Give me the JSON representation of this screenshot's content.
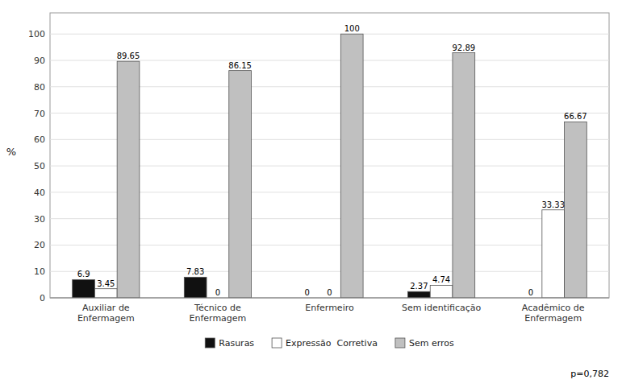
{
  "chart_data": {
    "type": "bar",
    "y_label": "%",
    "categories": [
      "Auxiliar de\nEnfermagem",
      "Técnico de\nEnfermagem",
      "Enfermeiro",
      "Sem identificação",
      "Acadêmico de\nEnfermagem"
    ],
    "series": [
      {
        "name": "Rasuras",
        "color": "#111111",
        "values": [
          6.9,
          7.83,
          0,
          2.37,
          0
        ]
      },
      {
        "name": "Expressão  Corretiva",
        "color": "#ffffff",
        "values": [
          3.45,
          0,
          0,
          4.74,
          33.33
        ]
      },
      {
        "name": "Sem erros",
        "color": "#c0c0c0",
        "values": [
          89.65,
          86.15,
          100,
          92.89,
          66.67
        ]
      }
    ],
    "ylim": [
      0,
      108
    ],
    "yticks": [
      0,
      10,
      20,
      30,
      40,
      50,
      60,
      70,
      80,
      90,
      100
    ],
    "grid": true,
    "legend": "bottom",
    "data_labels": true,
    "annotation": "p=0,782"
  }
}
